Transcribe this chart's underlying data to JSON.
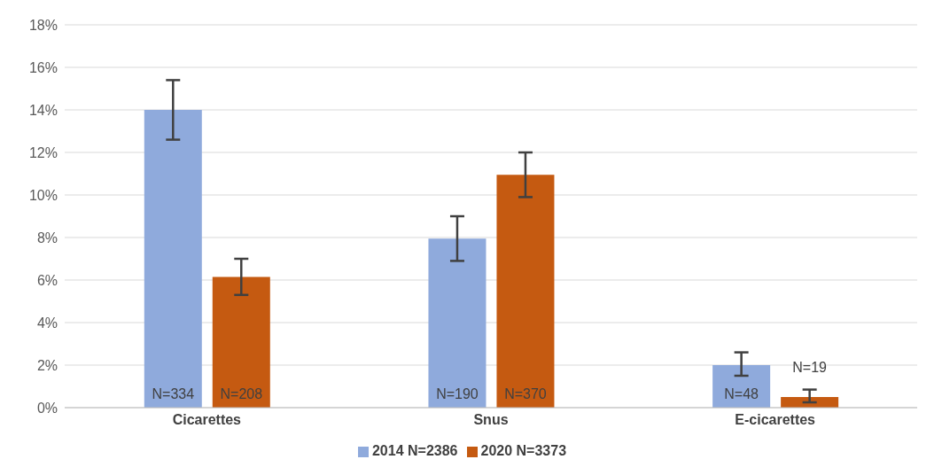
{
  "chart_data": {
    "type": "bar",
    "categories": [
      "Cicarettes",
      "Snus",
      "E-cicarettes"
    ],
    "series": [
      {
        "name": "2014 N=2386",
        "color": "#8faadc",
        "values": [
          14.0,
          7.95,
          2.0
        ],
        "errors": [
          [
            12.6,
            15.4
          ],
          [
            6.9,
            9.0
          ],
          [
            1.5,
            2.6
          ]
        ]
      },
      {
        "name": "2020 N=3373",
        "color": "#c55a11",
        "values": [
          6.15,
          10.95,
          0.5
        ],
        "errors": [
          [
            5.3,
            7.0
          ],
          [
            9.9,
            12.0
          ],
          [
            0.25,
            0.85
          ]
        ]
      }
    ],
    "annotations": [
      "N=334",
      "N=208",
      "N=190",
      "N=370",
      "N=48",
      "N=19"
    ],
    "ylim": [
      0,
      18
    ],
    "yticks": [
      {
        "value": 0,
        "label": "0%"
      },
      {
        "value": 2,
        "label": "2%"
      },
      {
        "value": 4,
        "label": "4%"
      },
      {
        "value": 6,
        "label": "6%"
      },
      {
        "value": 8,
        "label": "8%"
      },
      {
        "value": 10,
        "label": "10%"
      },
      {
        "value": 12,
        "label": "12%"
      },
      {
        "value": 14,
        "label": "14%"
      },
      {
        "value": 16,
        "label": "16%"
      },
      {
        "value": 18,
        "label": "18%"
      }
    ],
    "grid": "y",
    "legend": "bottom"
  }
}
